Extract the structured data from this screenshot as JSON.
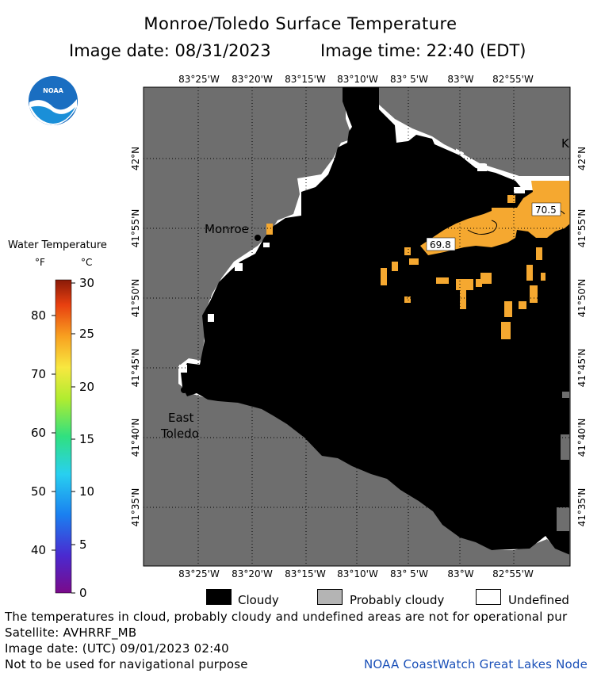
{
  "header": {
    "title": "Monroe/Toledo Surface Temperature",
    "image_date_label": "Image date: 08/31/2023",
    "image_time_label": "Image time: 22:40 (EDT)"
  },
  "logo": {
    "text": "NOAA"
  },
  "map": {
    "top_lon_labels": [
      "83°25'W",
      "83°20'W",
      "83°15'W",
      "83°10'W",
      "83° 5'W",
      "83°W",
      "82°55'W"
    ],
    "bottom_lon_labels": [
      "83°25'W",
      "83°20'W",
      "83°15'W",
      "83°10'W",
      "83° 5'W",
      "83°W",
      "82°55'W"
    ],
    "left_lat_labels": [
      "42°N",
      "41°55'N",
      "41°50'N",
      "41°45'N",
      "41°40'N",
      "41°35'N"
    ],
    "right_lat_labels": [
      "42°N",
      "41°55'N",
      "41°50'N",
      "41°45'N",
      "41°40'N",
      "41°35'N"
    ],
    "places": {
      "monroe": "Monroe",
      "east_toledo_1": "East",
      "east_toledo_2": "Toledo",
      "k": "K"
    },
    "temp_labels": [
      "69.8",
      "70.5"
    ],
    "colors": {
      "land": "#6e6e6e",
      "cloud": "#000000",
      "undefined": "#ffffff",
      "warm_water": "#f5a830"
    }
  },
  "scale": {
    "title": "Water Temperature",
    "f_unit": "°F",
    "c_unit": "°C",
    "f_ticks": [
      "80",
      "70",
      "60",
      "50",
      "40"
    ],
    "c_ticks": [
      "30",
      "25",
      "20",
      "15",
      "10",
      "5",
      "0"
    ]
  },
  "legend": {
    "cloudy": "Cloudy",
    "probably_cloudy": "Probably cloudy",
    "undefined": "Undefined"
  },
  "footer": {
    "line1": "The temperatures in cloud, probably cloudy and undefined areas are not for operational pur",
    "line2": "Satellite: AVHRRF_MB",
    "line3": "Image date: (UTC) 09/01/2023  02:40",
    "line4": "Not to be used for navigational purpose",
    "credit": "NOAA CoastWatch Great Lakes Node"
  }
}
